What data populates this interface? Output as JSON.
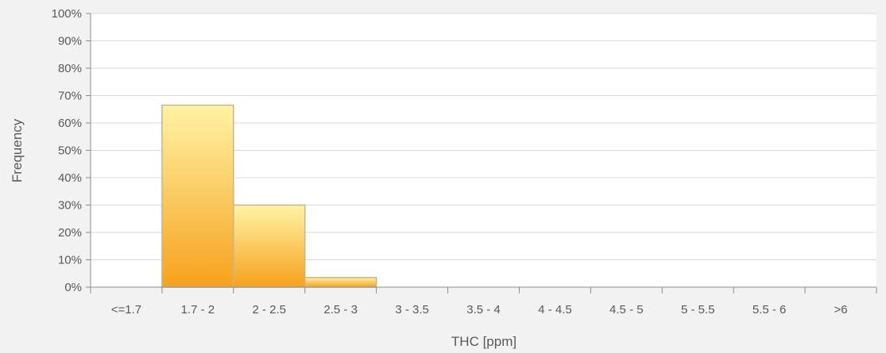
{
  "chart_data": {
    "type": "bar",
    "title": "",
    "xlabel": "THC [ppm]",
    "ylabel": "Frequency",
    "ylim": [
      0,
      1
    ],
    "y_ticks": [
      "0%",
      "10%",
      "20%",
      "30%",
      "40%",
      "50%",
      "60%",
      "70%",
      "80%",
      "90%",
      "100%"
    ],
    "categories": [
      "<=1.7",
      "1.7 - 2",
      "2 - 2.5",
      "2.5 - 3",
      "3 - 3.5",
      "3.5 - 4",
      "4 - 4.5",
      "4.5 - 5",
      "5 - 5.5",
      "5.5 - 6",
      ">6"
    ],
    "values": [
      0,
      0.665,
      0.3,
      0.035,
      0,
      0,
      0,
      0,
      0,
      0,
      0
    ],
    "grid": true,
    "colors": {
      "bar_top": "#fff3a6",
      "bar_bottom": "#f7a11c",
      "bar_stroke": "#c9b48c",
      "grid": "#d9d9d9",
      "axis": "#8c8c8c",
      "plot_bg": "#ffffff",
      "page_bg": "#f2f2f2"
    }
  }
}
